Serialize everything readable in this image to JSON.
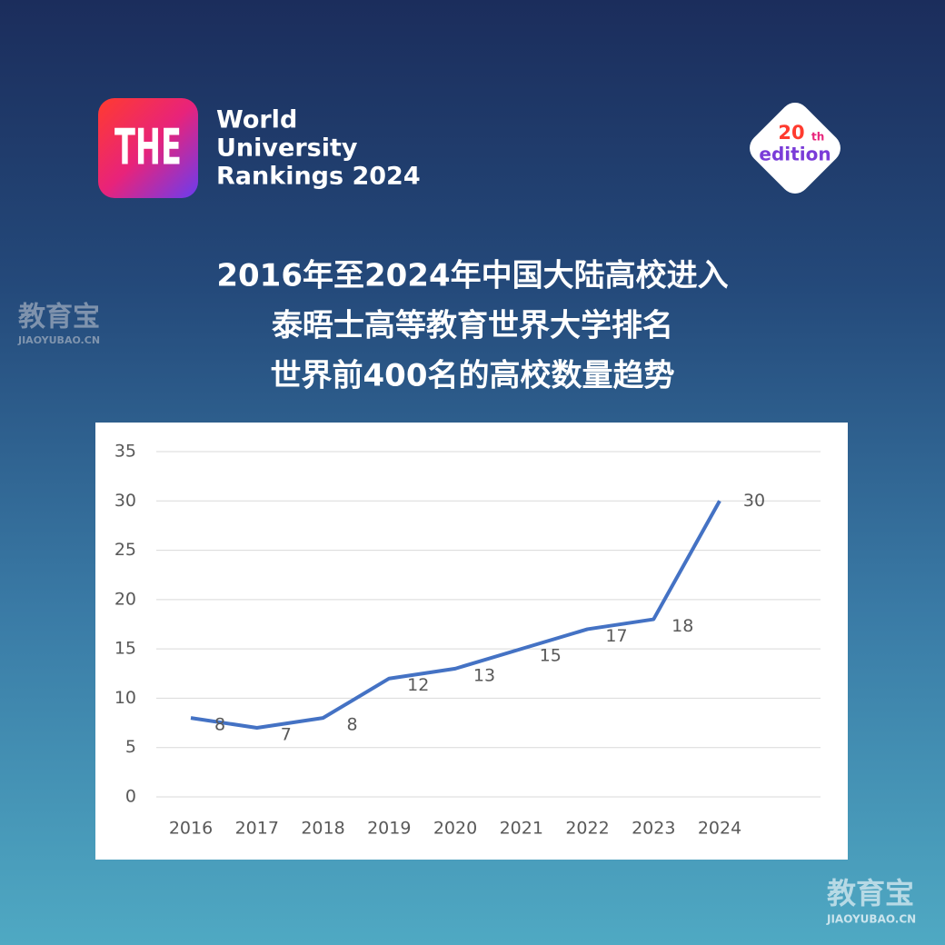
{
  "header": {
    "logo": "THE",
    "brand": [
      "World",
      "University",
      "Rankings 2024"
    ],
    "edition": {
      "number": "20",
      "suffix": "th",
      "word": "edition"
    }
  },
  "watermarks": [
    {
      "name": "教育宝",
      "site": "JIAOYUBAO.CN"
    },
    {
      "name": "教育宝",
      "site": "JIAOYUBAO.CN"
    }
  ],
  "chart_data": {
    "type": "line",
    "title": [
      "2016年至2024年中国大陆高校进入",
      "泰晤士高等教育世界大学排名",
      "世界前400名的高校数量趋势"
    ],
    "categories": [
      "2016",
      "2017",
      "2018",
      "2019",
      "2020",
      "2021",
      "2022",
      "2023",
      "2024"
    ],
    "values": [
      8,
      7,
      8,
      12,
      13,
      15,
      17,
      18,
      30
    ],
    "color": "#4472c4",
    "ylim": [
      0,
      35
    ],
    "yticks": [
      0,
      5,
      10,
      15,
      20,
      25,
      30,
      35
    ],
    "grid": true
  }
}
